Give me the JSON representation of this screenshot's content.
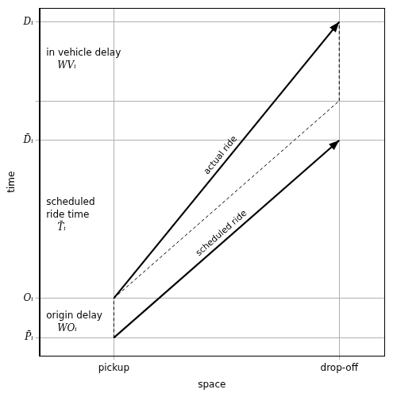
{
  "chart_data": {
    "type": "line",
    "x_label": "space",
    "y_label": "time",
    "xlim": [
      -0.33,
      1.2
    ],
    "ylim": [
      -0.46,
      8.35
    ],
    "xticks": [
      {
        "value": 0,
        "label": "pickup"
      },
      {
        "value": 1,
        "label": "drop-off"
      }
    ],
    "yticks": [
      {
        "value": 0,
        "label": "P̄ᵢ"
      },
      {
        "value": 1,
        "label": "Oᵢ"
      },
      {
        "value": 5,
        "label": "D̄ᵢ"
      },
      {
        "value": 6,
        "label": null
      },
      {
        "value": 8,
        "label": "Dᵢ"
      }
    ],
    "grid": true,
    "series": [
      {
        "name": "actual ride",
        "color": "#000000",
        "x": [
          0,
          1
        ],
        "values": [
          1,
          8
        ],
        "line_style": "solid",
        "marker": "arrow"
      },
      {
        "name": "scheduled ride",
        "color": "#000000",
        "x": [
          0,
          1
        ],
        "values": [
          0,
          5
        ],
        "line_style": "solid",
        "marker": "arrow"
      },
      {
        "color": "#000000",
        "x": [
          0,
          0
        ],
        "values": [
          0,
          1
        ],
        "line_style": "dashed"
      },
      {
        "color": "#000000",
        "x": [
          0,
          1
        ],
        "values": [
          1,
          6
        ],
        "line_style": "dashed"
      },
      {
        "color": "#000000",
        "x": [
          1,
          1
        ],
        "values": [
          6,
          8
        ],
        "line_style": "dashed"
      }
    ],
    "annotations": [
      {
        "text": [
          "in vehicle delay",
          "WVᵢ"
        ],
        "x": -0.3,
        "y": 7.05
      },
      {
        "text": [
          "scheduled",
          "ride time",
          "T̄ᵢ"
        ],
        "x": -0.3,
        "y": 3.1
      },
      {
        "text": [
          "origin delay",
          "WOᵢ"
        ],
        "x": -0.3,
        "y": 0.4
      }
    ]
  }
}
